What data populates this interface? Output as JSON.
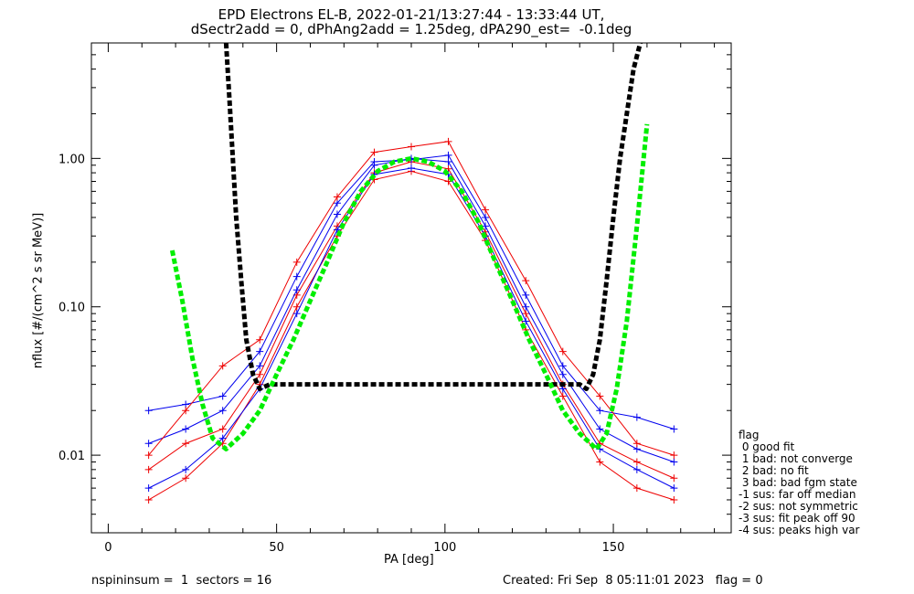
{
  "title_line1": "EPD Electrons EL-B, 2022-01-21/13:27:44 - 13:33:44 UT,",
  "title_line2": "dSectr2add = 0, dPhAng2add = 1.25deg, dPA290_est=  -0.1deg",
  "footer": {
    "left": "nspininsum =  1  sectors = 16",
    "right": "Created: Fri Sep  8 05:11:01 2023   flag = 0"
  },
  "legend": {
    "title": "flag",
    "items": [
      " 0 good fit",
      " 1 bad: not converge",
      " 2 bad: no fit",
      " 3 bad: bad fgm state",
      "-1 sus: far off median",
      "-2 sus: not symmetric",
      "-3 sus: fit peak off 90",
      "-4 sus: peaks high var"
    ]
  },
  "colors": {
    "red": "#ee0000",
    "blue": "#0000ee",
    "green": "#00ee00",
    "black": "#000000"
  },
  "chart_data": {
    "type": "line",
    "xlabel": "PA [deg]",
    "ylabel": "nflux [#/(cm^2 s sr MeV)]",
    "xlim": [
      -5,
      185
    ],
    "ylim": [
      0.003,
      6.0
    ],
    "yscale": "log",
    "xticks": [
      0,
      50,
      100,
      150
    ],
    "xtick_labels": [
      "0",
      "50",
      "100",
      "150"
    ],
    "yticks": [
      0.01,
      0.1,
      1.0
    ],
    "ytick_labels": [
      "0.01",
      "0.10",
      "1.00"
    ],
    "grid": false,
    "pa_bins": [
      12,
      23,
      34,
      45,
      56,
      68,
      79,
      90,
      101,
      112,
      124,
      135,
      146,
      157,
      168
    ],
    "series": [
      {
        "color": "red",
        "marker": "+",
        "values": [
          0.008,
          0.012,
          0.015,
          0.035,
          0.12,
          0.35,
          0.8,
          0.95,
          0.85,
          0.32,
          0.09,
          0.03,
          0.012,
          0.009,
          0.007
        ]
      },
      {
        "color": "blue",
        "marker": "+",
        "values": [
          0.012,
          0.015,
          0.02,
          0.04,
          0.13,
          0.42,
          0.9,
          1.0,
          0.95,
          0.35,
          0.1,
          0.035,
          0.015,
          0.011,
          0.009
        ]
      },
      {
        "color": "red",
        "marker": "+",
        "values": [
          0.005,
          0.007,
          0.012,
          0.03,
          0.1,
          0.3,
          0.72,
          0.82,
          0.7,
          0.28,
          0.07,
          0.025,
          0.009,
          0.006,
          0.005
        ]
      },
      {
        "color": "blue",
        "marker": "+",
        "values": [
          0.02,
          0.022,
          0.025,
          0.05,
          0.16,
          0.5,
          0.95,
          0.98,
          1.05,
          0.4,
          0.12,
          0.04,
          0.02,
          0.018,
          0.015
        ]
      },
      {
        "color": "blue",
        "marker": "+",
        "values": [
          0.006,
          0.008,
          0.013,
          0.028,
          0.09,
          0.33,
          0.78,
          0.86,
          0.78,
          0.3,
          0.08,
          0.028,
          0.011,
          0.008,
          0.006
        ]
      },
      {
        "color": "red",
        "marker": "+",
        "values": [
          0.01,
          0.02,
          0.04,
          0.06,
          0.2,
          0.55,
          1.1,
          1.2,
          1.3,
          0.45,
          0.15,
          0.05,
          0.025,
          0.012,
          0.01
        ]
      }
    ],
    "fit_green": {
      "x": [
        19,
        22,
        25,
        28,
        31,
        35,
        40,
        45,
        50,
        55,
        60,
        65,
        70,
        75,
        80,
        85,
        90,
        95,
        100,
        105,
        110,
        115,
        120,
        125,
        130,
        135,
        140,
        145,
        148,
        151,
        154,
        157,
        160
      ],
      "y": [
        0.24,
        0.11,
        0.045,
        0.022,
        0.013,
        0.011,
        0.014,
        0.02,
        0.035,
        0.06,
        0.11,
        0.2,
        0.37,
        0.6,
        0.82,
        0.95,
        1.0,
        0.95,
        0.82,
        0.6,
        0.37,
        0.2,
        0.11,
        0.06,
        0.035,
        0.02,
        0.014,
        0.011,
        0.014,
        0.028,
        0.08,
        0.35,
        1.7
      ]
    },
    "fit_black": {
      "x": [
        35,
        36,
        37,
        38,
        39.5,
        41,
        43,
        45,
        48,
        140,
        142,
        144,
        146,
        148,
        150,
        152,
        154,
        156,
        158
      ],
      "y": [
        6.0,
        2.5,
        1.0,
        0.4,
        0.15,
        0.06,
        0.035,
        0.028,
        0.03,
        0.03,
        0.028,
        0.035,
        0.06,
        0.15,
        0.4,
        1.0,
        2.0,
        4.0,
        6.0
      ]
    }
  }
}
